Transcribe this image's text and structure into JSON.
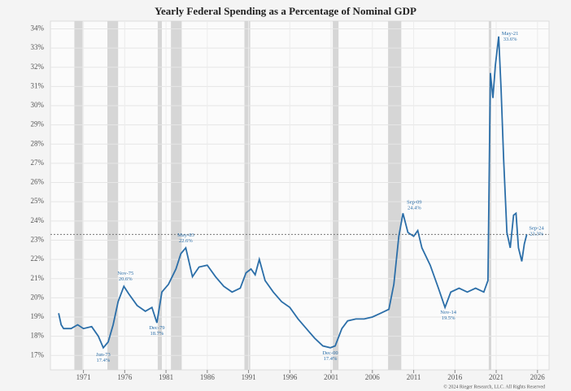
{
  "chart_data": {
    "type": "line",
    "title": "Yearly Federal Spending as a Percentage of Nominal GDP",
    "xlim": [
      1967,
      2027.4
    ],
    "ylim": [
      16.25,
      34.4
    ],
    "xticks": [
      1971,
      1976,
      1981,
      1986,
      1991,
      1996,
      2001,
      2006,
      2011,
      2016,
      2021,
      2026
    ],
    "yticks": [
      {
        "value": 17,
        "label": "17%"
      },
      {
        "value": 18,
        "label": "18%"
      },
      {
        "value": 19,
        "label": "19%"
      },
      {
        "value": 20,
        "label": "20%"
      },
      {
        "value": 21,
        "label": "21%"
      },
      {
        "value": 22,
        "label": "22%"
      },
      {
        "value": 23,
        "label": "23%"
      },
      {
        "value": 24,
        "label": "24%"
      },
      {
        "value": 25,
        "label": "25%"
      },
      {
        "value": 26,
        "label": "26%"
      },
      {
        "value": 27,
        "label": "27%"
      },
      {
        "value": 28,
        "label": "28%"
      },
      {
        "value": 29,
        "label": "29%"
      },
      {
        "value": 30,
        "label": "30%"
      },
      {
        "value": 31,
        "label": "31%"
      },
      {
        "value": 32,
        "label": "32%"
      },
      {
        "value": 33,
        "label": "33%"
      },
      {
        "value": 34,
        "label": "34%"
      }
    ],
    "grid": true,
    "reference_line": 23.3,
    "recessions": [
      [
        1969.9,
        1970.9
      ],
      [
        1973.9,
        1975.2
      ],
      [
        1980.0,
        1980.5
      ],
      [
        1981.6,
        1982.9
      ],
      [
        1990.5,
        1991.2
      ],
      [
        2001.2,
        2001.9
      ],
      [
        2007.9,
        2009.5
      ],
      [
        2020.1,
        2020.4
      ]
    ],
    "series": [
      {
        "color": "#2b6ea8",
        "x": [
          1968.0,
          1968.3,
          1968.6,
          1969.5,
          1970.3,
          1971.0,
          1972.0,
          1972.8,
          1973.4,
          1974.0,
          1974.6,
          1975.2,
          1975.9,
          1976.5,
          1977.5,
          1978.5,
          1979.3,
          1979.9,
          1980.5,
          1981.3,
          1982.2,
          1982.8,
          1983.4,
          1984.2,
          1985.0,
          1986.0,
          1987.0,
          1988.0,
          1989.0,
          1990.0,
          1990.7,
          1991.3,
          1991.8,
          1992.3,
          1993.0,
          1994.0,
          1995.0,
          1996.0,
          1997.0,
          1998.0,
          1999.0,
          2000.0,
          2000.9,
          2001.5,
          2002.3,
          2003.0,
          2004.0,
          2005.0,
          2006.0,
          2007.0,
          2008.0,
          2008.6,
          2009.2,
          2009.7,
          2010.3,
          2011.0,
          2011.5,
          2012.0,
          2013.0,
          2014.0,
          2014.8,
          2015.5,
          2016.5,
          2017.5,
          2018.5,
          2019.5,
          2020.0,
          2020.3,
          2020.6,
          2020.9,
          2021.3,
          2021.6,
          2021.9,
          2022.3,
          2022.7,
          2023.1,
          2023.4,
          2023.7,
          2024.1,
          2024.4,
          2024.7
        ],
        "values": [
          19.2,
          18.6,
          18.4,
          18.4,
          18.6,
          18.4,
          18.5,
          18.0,
          17.4,
          17.7,
          18.6,
          19.8,
          20.6,
          20.2,
          19.6,
          19.3,
          19.5,
          18.7,
          20.3,
          20.7,
          21.5,
          22.3,
          22.6,
          21.1,
          21.6,
          21.7,
          21.1,
          20.6,
          20.3,
          20.5,
          21.3,
          21.5,
          21.2,
          22.0,
          20.9,
          20.3,
          19.8,
          19.5,
          18.9,
          18.4,
          17.9,
          17.5,
          17.4,
          17.5,
          18.4,
          18.8,
          18.9,
          18.9,
          19.0,
          19.2,
          19.4,
          20.7,
          23.2,
          24.4,
          23.4,
          23.2,
          23.5,
          22.6,
          21.7,
          20.5,
          19.5,
          20.3,
          20.5,
          20.3,
          20.5,
          20.3,
          20.9,
          31.7,
          30.4,
          32.1,
          33.6,
          30.8,
          27.2,
          23.4,
          22.6,
          24.3,
          24.4,
          22.6,
          21.9,
          22.8,
          23.3
        ]
      }
    ],
    "annotations": [
      {
        "label": "Jun-73",
        "text": "17.4%",
        "x": 1973.4,
        "y": 17.4
      },
      {
        "label": "Nov-75",
        "text": "20.6%",
        "x": 1975.9,
        "y": 20.6
      },
      {
        "label": "Dec-79",
        "text": "18.7%",
        "x": 1979.9,
        "y": 18.7
      },
      {
        "label": "May-83",
        "text": "22.6%",
        "x": 1983.4,
        "y": 22.6
      },
      {
        "label": "Dec-00",
        "text": "17.4%",
        "x": 2000.9,
        "y": 17.4
      },
      {
        "label": "Sep-09",
        "text": "24.4%",
        "x": 2009.7,
        "y": 24.4
      },
      {
        "label": "Nov-14",
        "text": "19.5%",
        "x": 2014.8,
        "y": 19.5
      },
      {
        "label": "May-21",
        "text": "33.6%",
        "x": 2021.3,
        "y": 33.6
      },
      {
        "label": "Sep-24",
        "text": "23.3%",
        "x": 2024.7,
        "y": 23.3
      }
    ],
    "footer": "© 2024 Rieger Research, LLC. All Rights Reserved"
  }
}
